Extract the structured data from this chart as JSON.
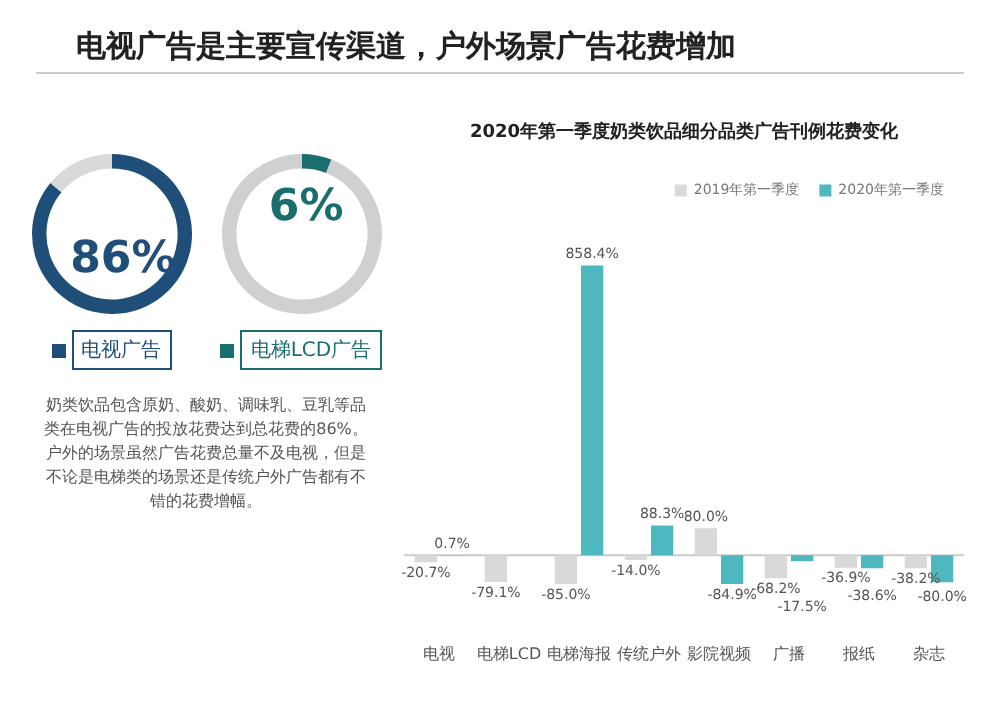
{
  "chart_data": [
    {
      "type": "donut",
      "title": "电视广告是主要宣传渠道，户外场景广告花费增加",
      "categories": [
        "电视广告",
        null
      ],
      "values": [
        86,
        14
      ],
      "colors": [
        "#1f4e79",
        "#d9d9d9"
      ],
      "value_labels": [
        "86%",
        null
      ],
      "annotations": [
        "奶类饮品包含原奶、酸奶、调味乳、豆乳等品类在电视广告的投放花费达到总花费的86%。户外的场景虽然广告花费总量不及电视，但是不论是电梯类的场景还是传统户外广告都有不错的花费增幅。"
      ]
    },
    {
      "type": "donut",
      "categories": [
        "电梯LCD广告",
        null
      ],
      "values": [
        6,
        94
      ],
      "colors": [
        "#1a6e6e",
        "#d0d0d0"
      ],
      "value_labels": [
        "6%",
        null
      ]
    },
    {
      "type": "bar",
      "title": "2020年第一季度奶类饮品细分品类广告刊例花费变化",
      "tick_labels": "x",
      "categories": [
        "电视",
        "电梯LCD",
        "电梯海报",
        "传统户外",
        "影院视频",
        "广播",
        "报纸",
        "杂志"
      ],
      "legend": "top right",
      "series": [
        {
          "name": "2019年第一季度",
          "color": "#d9d9d9",
          "values": [
            -20.7,
            -79.1,
            -85.0,
            -14.0,
            80.0,
            -68.2,
            -36.9,
            -38.2
          ],
          "value_labels": [
            "-20.7%",
            "-79.1%",
            "-85.0%",
            "-14.0%",
            "80.0%",
            "-68.2%",
            "-36.9%",
            "-38.2%"
          ]
        },
        {
          "name": "2020年第一季度",
          "color": "#4db8bf",
          "values": [
            0.7,
            null,
            858.4,
            88.3,
            -84.9,
            -17.5,
            -38.6,
            -80.0
          ],
          "value_labels": [
            "0.7%",
            null,
            "858.4%",
            "88.3%",
            "-84.9%",
            "-17.5%",
            "-38.6%",
            "-80.0%"
          ]
        }
      ]
    }
  ]
}
